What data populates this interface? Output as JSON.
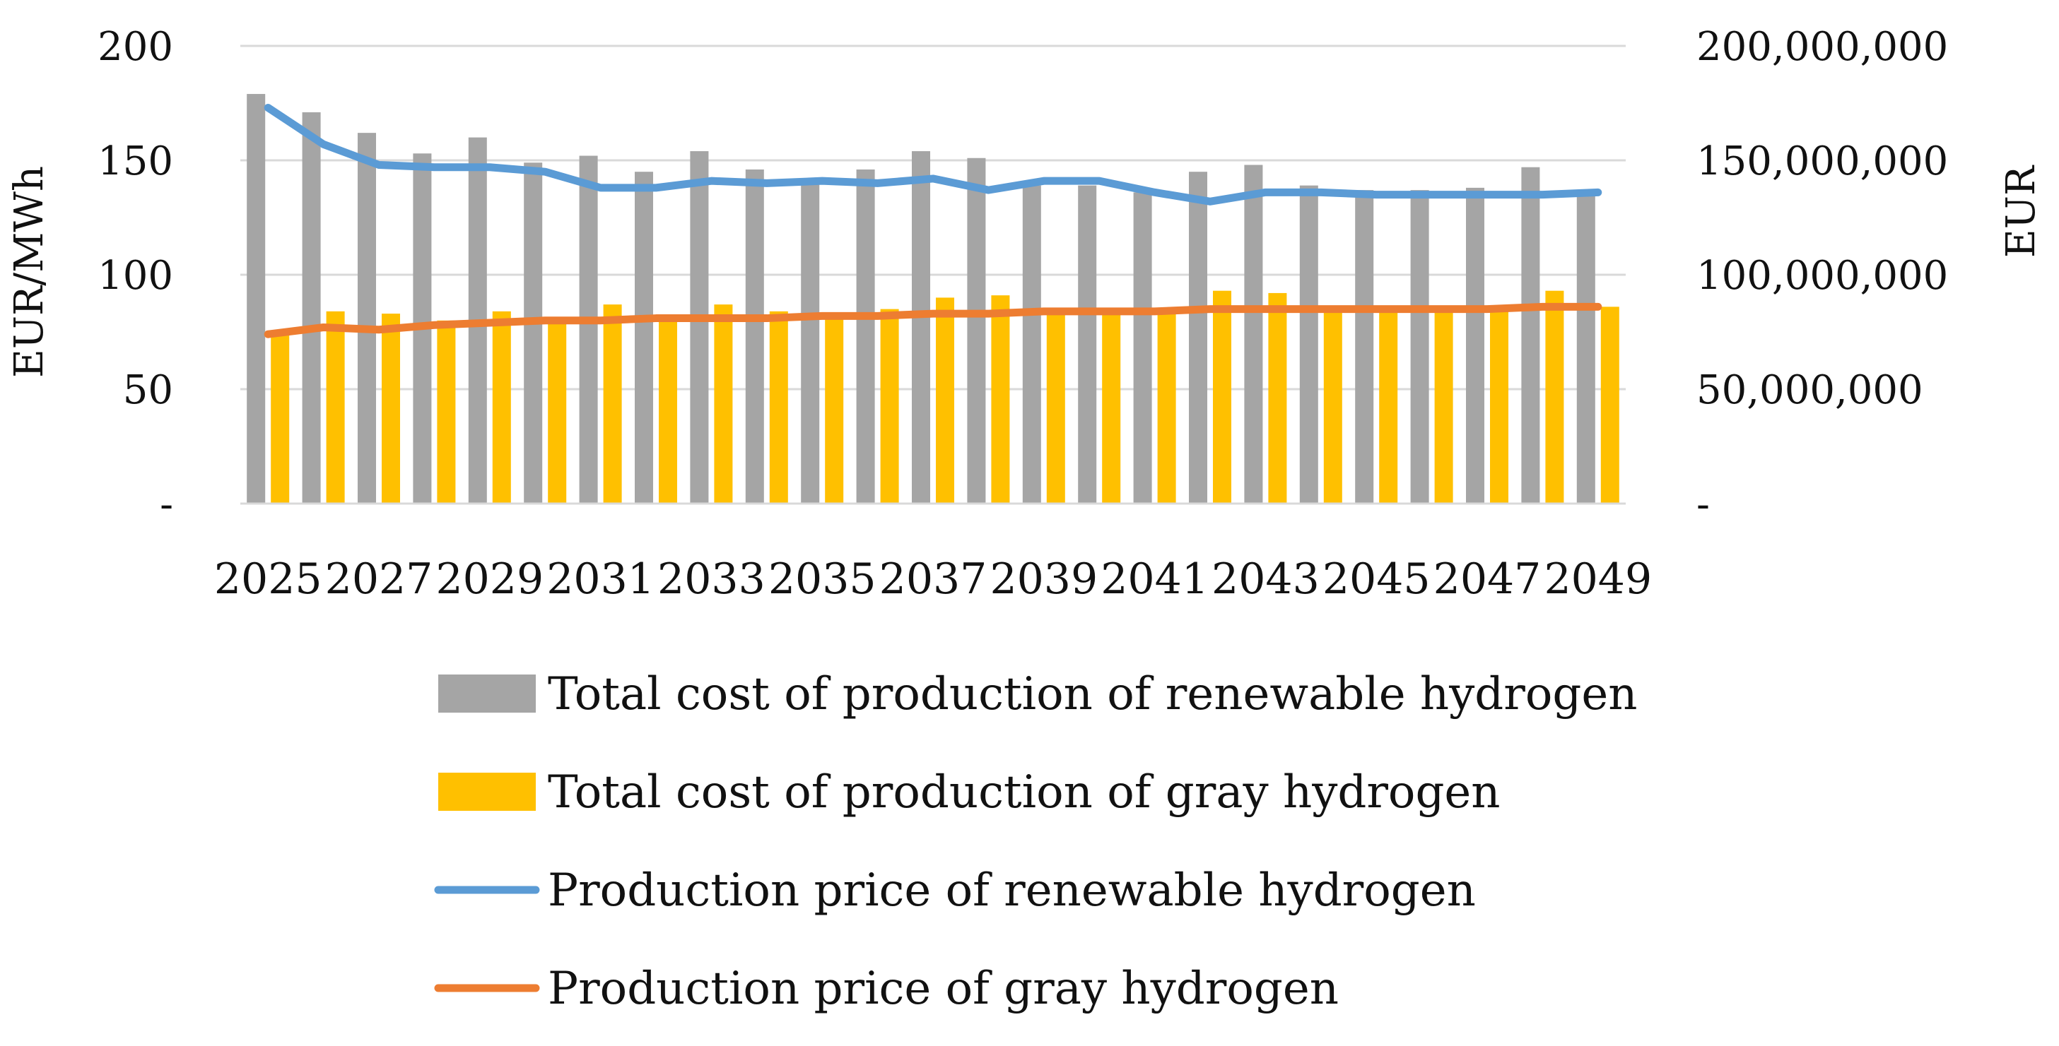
{
  "chart_data": {
    "type": "bar+line",
    "title": "",
    "categories": [
      "2025",
      "2026",
      "2027",
      "2028",
      "2029",
      "2030",
      "2031",
      "2032",
      "2033",
      "2034",
      "2035",
      "2036",
      "2037",
      "2038",
      "2039",
      "2040",
      "2041",
      "2042",
      "2043",
      "2044",
      "2045",
      "2046",
      "2047",
      "2048",
      "2049"
    ],
    "x_tick_labels": [
      "2025",
      "2027",
      "2029",
      "2031",
      "2033",
      "2035",
      "2037",
      "2039",
      "2041",
      "2043",
      "2045",
      "2047",
      "2049"
    ],
    "left_axis": {
      "label": "EUR/MWh",
      "ylim": [
        0,
        200
      ],
      "ticks": [
        0,
        50,
        100,
        150,
        200
      ],
      "tick_labels": [
        "-",
        "50",
        "100",
        "150",
        "200"
      ]
    },
    "right_axis": {
      "label": "EUR",
      "ylim": [
        0,
        200000000
      ],
      "ticks": [
        0,
        50000000,
        100000000,
        150000000,
        200000000
      ],
      "tick_labels": [
        "-",
        "50,000,000",
        "100,000,000",
        "150,000,000",
        "200,000,000"
      ]
    },
    "gridlines": true,
    "legend_position": "bottom",
    "series": [
      {
        "name": "Total cost of production of renewable hydrogen",
        "kind": "bar",
        "axis": "right",
        "color": "#a5a5a5",
        "values": [
          179000000,
          171000000,
          162000000,
          153000000,
          160000000,
          149000000,
          152000000,
          145000000,
          154000000,
          146000000,
          142000000,
          146000000,
          154000000,
          151000000,
          139000000,
          139000000,
          136000000,
          145000000,
          148000000,
          139000000,
          137000000,
          137000000,
          138000000,
          147000000,
          136000000
        ]
      },
      {
        "name": "Total cost of production of gray hydrogen",
        "kind": "bar",
        "axis": "right",
        "color": "#ffc000",
        "values": [
          74000000,
          84000000,
          83000000,
          80000000,
          84000000,
          81000000,
          87000000,
          81000000,
          87000000,
          84000000,
          83000000,
          85000000,
          90000000,
          91000000,
          83000000,
          85000000,
          85000000,
          93000000,
          92000000,
          85000000,
          85000000,
          85000000,
          85000000,
          93000000,
          86000000
        ]
      },
      {
        "name": "Production price of renewable hydrogen",
        "kind": "line",
        "axis": "left",
        "color": "#5b9bd5",
        "values": [
          173,
          157,
          148,
          147,
          147,
          145,
          138,
          138,
          141,
          140,
          141,
          140,
          142,
          137,
          141,
          141,
          136,
          132,
          136,
          136,
          135,
          135,
          135,
          135,
          136
        ]
      },
      {
        "name": "Production price of gray hydrogen",
        "kind": "line",
        "axis": "left",
        "color": "#ed7d31",
        "values": [
          74,
          77,
          76,
          78,
          79,
          80,
          80,
          81,
          81,
          81,
          82,
          82,
          83,
          83,
          84,
          84,
          84,
          85,
          85,
          85,
          85,
          85,
          85,
          86,
          86
        ]
      }
    ]
  }
}
